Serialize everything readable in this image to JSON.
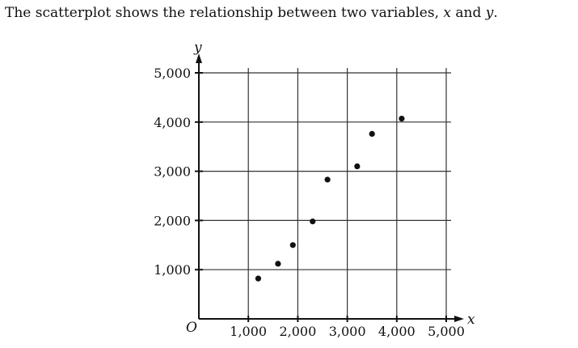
{
  "prompt": {
    "before": "The scatterplot shows the relationship between two variables, ",
    "var_x": "x",
    "middle": " and ",
    "var_y": "y",
    "after": "."
  },
  "chart_data": {
    "type": "scatter",
    "title": "",
    "xlabel": "x",
    "ylabel": "y",
    "origin_label": "O",
    "xlim": [
      0,
      5000
    ],
    "ylim": [
      0,
      5000
    ],
    "grid": true,
    "x_ticks": [
      1000,
      2000,
      3000,
      4000,
      5000
    ],
    "y_ticks": [
      1000,
      2000,
      3000,
      4000,
      5000
    ],
    "x_tick_labels": [
      "1,000",
      "2,000",
      "3,000",
      "4,000",
      "5,000"
    ],
    "y_tick_labels": [
      "1,000",
      "2,000",
      "3,000",
      "4,000",
      "5,000"
    ],
    "points": [
      {
        "x": 1200,
        "y": 820
      },
      {
        "x": 1600,
        "y": 1120
      },
      {
        "x": 1900,
        "y": 1500
      },
      {
        "x": 2300,
        "y": 1980
      },
      {
        "x": 2600,
        "y": 2830
      },
      {
        "x": 3200,
        "y": 3100
      },
      {
        "x": 3500,
        "y": 3760
      },
      {
        "x": 4100,
        "y": 4070
      }
    ],
    "point_color": "#111111"
  }
}
